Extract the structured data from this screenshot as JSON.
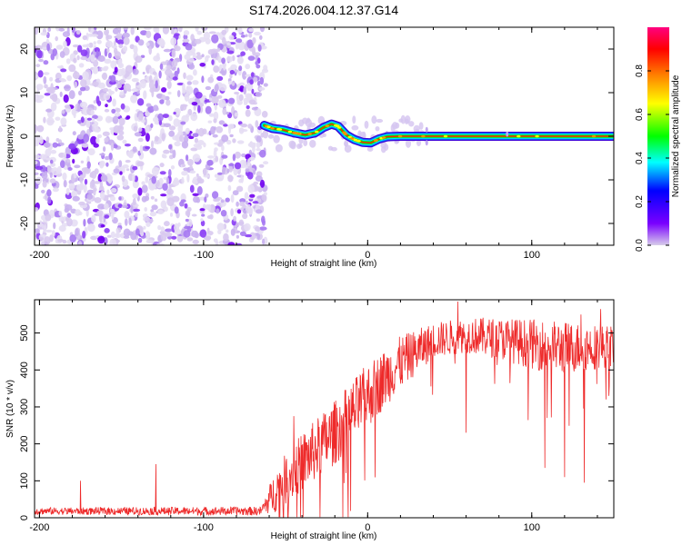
{
  "title": "S174.2026.004.12.37.G14",
  "chart_data": [
    {
      "type": "heatmap",
      "xlabel": "Height of straight line (km)",
      "ylabel": "Frequency (Hz)",
      "xlim": [
        -203,
        150
      ],
      "ylim": [
        -25,
        25
      ],
      "xticks": [
        -200,
        -100,
        0,
        100
      ],
      "yticks": [
        -20,
        -10,
        0,
        10,
        20
      ],
      "noise_region_x": [
        -203,
        -62
      ],
      "signal_start_km": -63,
      "signal_end_km": 150,
      "ridge": [
        {
          "x": -63,
          "y": 2.5
        },
        {
          "x": -58,
          "y": 1.8
        },
        {
          "x": -52,
          "y": 1.5
        },
        {
          "x": -45,
          "y": 0.8
        },
        {
          "x": -38,
          "y": 0.3
        },
        {
          "x": -32,
          "y": 0.8
        },
        {
          "x": -27,
          "y": 2.0
        },
        {
          "x": -22,
          "y": 2.8
        },
        {
          "x": -18,
          "y": 2.3
        },
        {
          "x": -13,
          "y": 0.3
        },
        {
          "x": -8,
          "y": -0.8
        },
        {
          "x": -3,
          "y": -1.4
        },
        {
          "x": 2,
          "y": -1.5
        },
        {
          "x": 7,
          "y": -0.6
        },
        {
          "x": 12,
          "y": -0.1
        },
        {
          "x": 20,
          "y": 0.0
        },
        {
          "x": 38,
          "y": 0.0
        },
        {
          "x": 150,
          "y": 0.0
        }
      ],
      "colorbar": {
        "label": "Normalized spectral amplitude",
        "range": [
          0.0,
          1.0
        ],
        "ticks": [
          "0.0",
          "0.2",
          "0.4",
          "0.6",
          "0.8"
        ],
        "tick_values": [
          0.0,
          0.2,
          0.4,
          0.6,
          0.8
        ],
        "colors": [
          "#d7cdea",
          "#7a00ff",
          "#0000ff",
          "#00ffff",
          "#00ff00",
          "#ffff00",
          "#ff8000",
          "#ff0000",
          "#ff0080"
        ]
      }
    },
    {
      "type": "line",
      "xlabel": "Height of straight line (km)",
      "ylabel": "SNR (10 * v/v)",
      "xlim": [
        -203,
        150
      ],
      "ylim": [
        0,
        590
      ],
      "xticks": [
        -200,
        -100,
        0,
        100
      ],
      "yticks": [
        0,
        100,
        200,
        300,
        400,
        500
      ],
      "color": "#ee2a2a",
      "envelope": [
        {
          "x": -203,
          "base": 18,
          "amp": 12
        },
        {
          "x": -65,
          "base": 18,
          "amp": 15
        },
        {
          "x": -55,
          "base": 80,
          "amp": 80
        },
        {
          "x": -40,
          "base": 150,
          "amp": 100
        },
        {
          "x": -20,
          "base": 230,
          "amp": 110
        },
        {
          "x": 0,
          "base": 330,
          "amp": 110
        },
        {
          "x": 20,
          "base": 420,
          "amp": 90
        },
        {
          "x": 40,
          "base": 480,
          "amp": 60
        },
        {
          "x": 60,
          "base": 495,
          "amp": 60
        },
        {
          "x": 80,
          "base": 485,
          "amp": 70
        },
        {
          "x": 100,
          "base": 470,
          "amp": 85
        },
        {
          "x": 120,
          "base": 460,
          "amp": 90
        },
        {
          "x": 150,
          "base": 465,
          "amp": 70
        }
      ],
      "spikes": [
        {
          "x": -175,
          "y": 100
        },
        {
          "x": -129,
          "y": 145
        },
        {
          "x": -45,
          "y": 275
        },
        {
          "x": 55,
          "y": 585
        },
        {
          "x": 60,
          "y": 560
        },
        {
          "x": 130,
          "y": 550
        },
        {
          "x": 142,
          "y": 565
        }
      ],
      "dips": [
        {
          "x": 60,
          "y": 230
        },
        {
          "x": 108,
          "y": 135
        },
        {
          "x": 120,
          "y": 110
        },
        {
          "x": 132,
          "y": 95
        },
        {
          "x": 147,
          "y": 330
        }
      ]
    }
  ]
}
